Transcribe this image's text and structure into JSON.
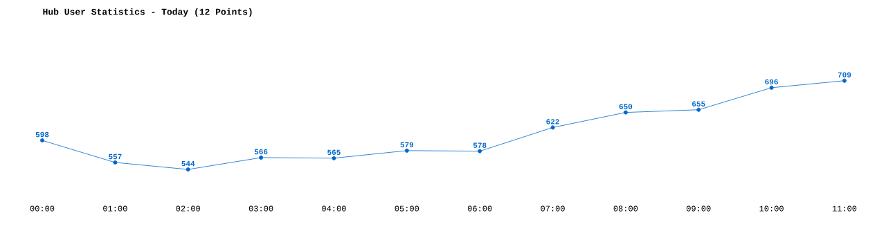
{
  "chart_data": {
    "type": "line",
    "title": "Hub User Statistics - Today (12 Points)",
    "categories": [
      "00:00",
      "01:00",
      "02:00",
      "03:00",
      "04:00",
      "05:00",
      "06:00",
      "07:00",
      "08:00",
      "09:00",
      "10:00",
      "11:00"
    ],
    "values": [
      598,
      557,
      544,
      566,
      565,
      579,
      578,
      622,
      650,
      655,
      696,
      709
    ],
    "color": "#0066cc",
    "marker": "circle",
    "data_labels": true
  }
}
